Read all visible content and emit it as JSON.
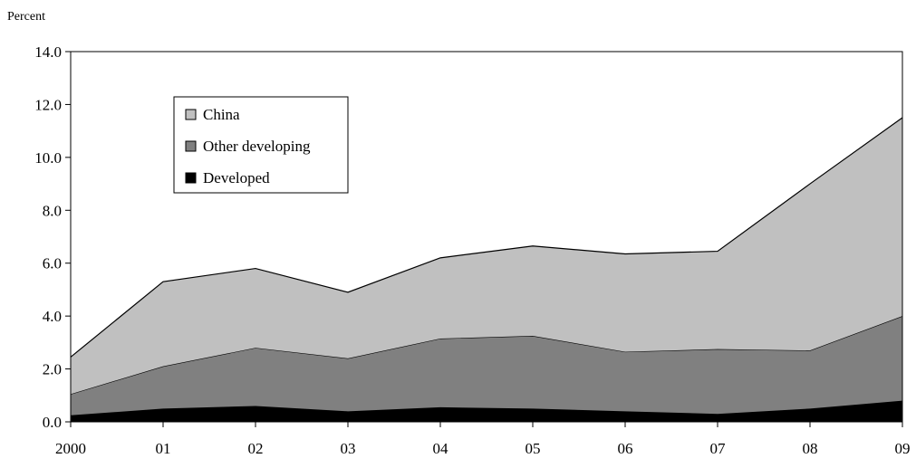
{
  "chart_data": {
    "type": "area",
    "stacked": true,
    "ylabel": "Percent",
    "xlabel": "",
    "title": "",
    "x": [
      "2000",
      "01",
      "02",
      "03",
      "04",
      "05",
      "06",
      "07",
      "08",
      "09"
    ],
    "ylim": [
      0,
      14
    ],
    "yticks": [
      "0.0",
      "2.0",
      "4.0",
      "6.0",
      "8.0",
      "10.0",
      "12.0",
      "14.0"
    ],
    "grid": false,
    "legend_position": "top-left inside plot",
    "series": [
      {
        "name": "Developed",
        "color": "#000000",
        "values": [
          0.25,
          0.5,
          0.6,
          0.4,
          0.55,
          0.5,
          0.4,
          0.3,
          0.5,
          0.8
        ]
      },
      {
        "name": "Other developing",
        "color": "#808080",
        "values": [
          0.8,
          1.6,
          2.2,
          2.0,
          2.6,
          2.75,
          2.25,
          2.45,
          2.2,
          3.2
        ]
      },
      {
        "name": "China",
        "color": "#c0c0c0",
        "values": [
          1.4,
          3.2,
          3.0,
          2.5,
          3.05,
          3.4,
          3.7,
          3.7,
          6.3,
          7.5
        ]
      }
    ],
    "legend_order": [
      "China",
      "Other developing",
      "Developed"
    ]
  }
}
